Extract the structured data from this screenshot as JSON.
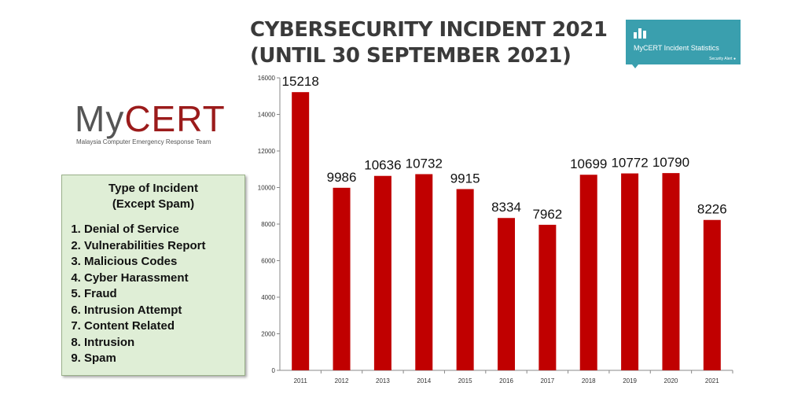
{
  "title_lines": [
    "CYBERSECURITY INCIDENT 2021",
    "(UNTIL 30 SEPTEMBER 2021)"
  ],
  "badge": {
    "text": "MyCERT Incident Statistics",
    "subtext": "Security Alert",
    "icon": "bar-chart-icon",
    "color": "#3a9fae"
  },
  "logo": {
    "my": "My",
    "cert": "CERT",
    "tagline": "Malaysia Computer Emergency Response Team"
  },
  "legend_box": {
    "heading": [
      "Type of Incident",
      "(Except Spam)"
    ],
    "items": [
      "Denial of Service",
      "Vulnerabilities Report",
      "Malicious Codes",
      "Cyber Harassment",
      "Fraud",
      "Intrusion Attempt",
      "Content Related",
      "Intrusion",
      "Spam"
    ]
  },
  "chart_data": {
    "type": "bar",
    "categories": [
      "2011",
      "2012",
      "2013",
      "2014",
      "2015",
      "2016",
      "2017",
      "2018",
      "2019",
      "2020",
      "2021"
    ],
    "values": [
      15218,
      9986,
      10636,
      10732,
      9915,
      8334,
      7962,
      10699,
      10772,
      10790,
      8226
    ],
    "ylim": [
      0,
      16000
    ],
    "yticks": [
      0,
      2000,
      4000,
      6000,
      8000,
      10000,
      12000,
      14000,
      16000
    ],
    "grid": false,
    "bar_color": "#c00000"
  }
}
